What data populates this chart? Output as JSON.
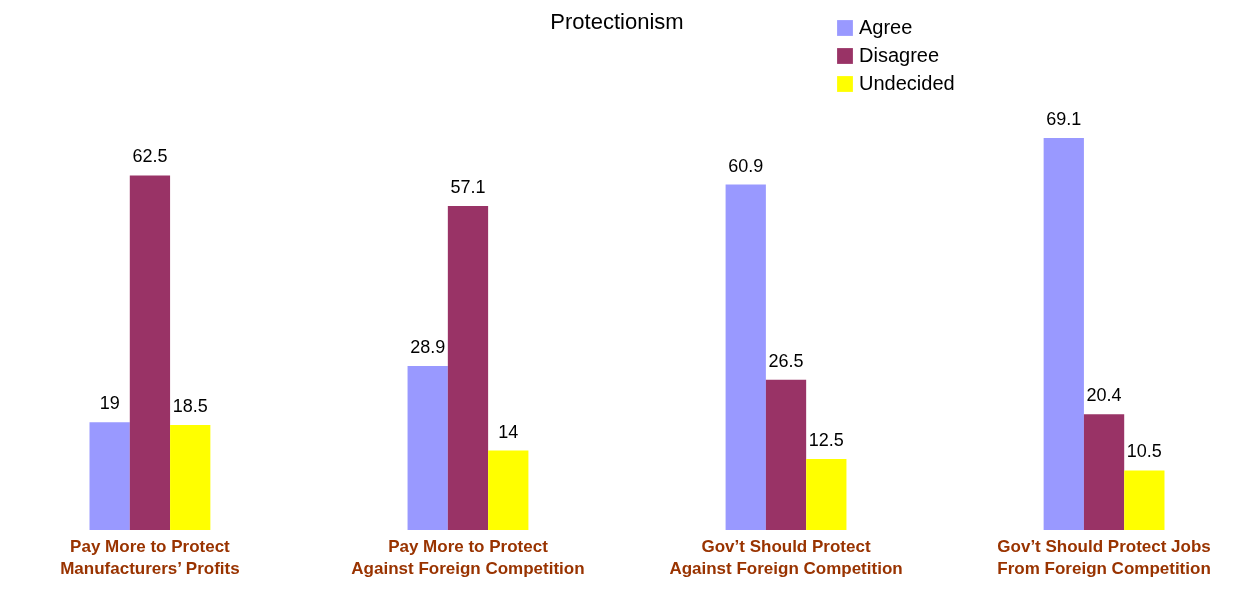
{
  "chart_data": {
    "type": "bar",
    "title": "Protectionism",
    "categories": [
      "Pay More to Protect\nManufacturers’ Profits",
      "Pay More to Protect\nAgainst Foreign Competition",
      "Gov’t Should Protect\nAgainst Foreign Competition",
      "Gov’t Should Protect Jobs\nFrom Foreign Competition"
    ],
    "series": [
      {
        "name": "Agree",
        "color": "#9999ff",
        "values": [
          19,
          28.9,
          60.9,
          69.1
        ]
      },
      {
        "name": "Disagree",
        "color": "#993366",
        "values": [
          62.5,
          57.1,
          26.5,
          20.4
        ]
      },
      {
        "name": "Undecided",
        "color": "#ffff00",
        "values": [
          18.5,
          14,
          12.5,
          10.5
        ]
      }
    ],
    "data_labels": true,
    "legend": "top right"
  }
}
